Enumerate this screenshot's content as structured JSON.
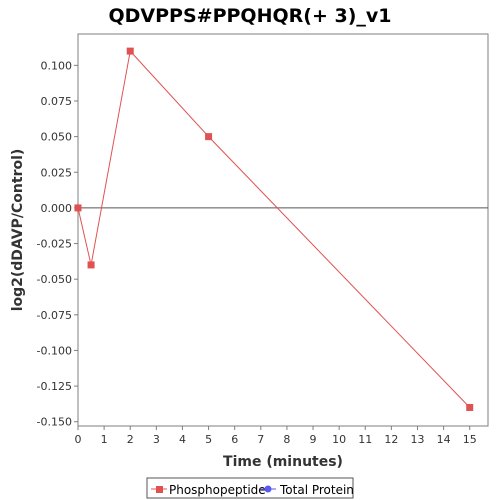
{
  "colors": {
    "phosphopeptide": "#e05252",
    "total_protein": "#5a5aee",
    "zero_line": "#555555",
    "plot_border": "#7f7f7f"
  },
  "chart_data": {
    "type": "line",
    "title": "QDVPPS#PPQHQR(+ 3)_v1",
    "xlabel": "Time (minutes)",
    "ylabel": "log2(dDAVP/Control)",
    "xlim": [
      0,
      15.7
    ],
    "ylim": [
      -0.153,
      0.122
    ],
    "x_ticks": [
      0,
      1,
      2,
      3,
      4,
      5,
      6,
      7,
      8,
      9,
      10,
      11,
      12,
      13,
      14,
      15
    ],
    "x_tick_labels": [
      "0",
      "1",
      "2",
      "3",
      "4",
      "5",
      "6",
      "7",
      "8",
      "9",
      "10",
      "11",
      "12",
      "13",
      "14",
      "15"
    ],
    "y_ticks": [
      0.1,
      0.075,
      0.05,
      0.025,
      0.0,
      -0.025,
      -0.05,
      -0.075,
      -0.1,
      -0.125,
      -0.15
    ],
    "y_tick_labels": [
      "0.100",
      "0.075",
      "0.050",
      "0.025",
      "0.000",
      "-0.025",
      "-0.050",
      "-0.075",
      "-0.100",
      "-0.125",
      "-0.150"
    ],
    "grid": false,
    "zero_line": true,
    "legend_position": "bottom",
    "series": [
      {
        "name": "Phosphopeptide",
        "marker": "square",
        "color": "#e05252",
        "points": [
          [
            0,
            0.0
          ],
          [
            0.5,
            -0.04
          ],
          [
            2,
            0.11
          ],
          [
            5,
            0.05
          ],
          [
            15,
            -0.14
          ]
        ]
      },
      {
        "name": "Total Protein",
        "marker": "circle",
        "color": "#5a5aee",
        "points": []
      }
    ]
  }
}
